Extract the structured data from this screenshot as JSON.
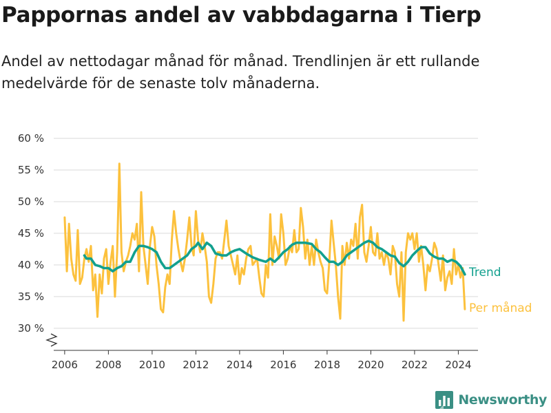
{
  "title": "Pappornas andel av vabbdagarna i Tierp",
  "subtitle": "Andel av nettodagar månad för månad. Trendlinjen är ett rullande medelvärde för de senaste tolv månaderna.",
  "brand": {
    "name": "Newsworthy",
    "icon": "bar-chart-icon",
    "color": "#3a8f84"
  },
  "chart_data": {
    "type": "line",
    "title": "",
    "xlabel": "",
    "ylabel": "",
    "x_ticks": [
      "2006",
      "2008",
      "2010",
      "2012",
      "2014",
      "2016",
      "2018",
      "2020",
      "2022",
      "2024"
    ],
    "y_ticks": [
      "30 %",
      "35 %",
      "40 %",
      "45 %",
      "50 %",
      "55 %",
      "60 %"
    ],
    "xlim": [
      2005.5,
      2024.9
    ],
    "ylim": [
      26.5,
      60
    ],
    "y_axis_break": true,
    "grid": true,
    "series": [
      {
        "name": "Per månad",
        "color": "#fcc13d",
        "points": [
          [
            2006.0,
            47.5
          ],
          [
            2006.1,
            39
          ],
          [
            2006.2,
            46.5
          ],
          [
            2006.3,
            41
          ],
          [
            2006.4,
            38.5
          ],
          [
            2006.5,
            37.5
          ],
          [
            2006.6,
            45.5
          ],
          [
            2006.7,
            37
          ],
          [
            2006.8,
            38
          ],
          [
            2006.9,
            41
          ],
          [
            2007.0,
            42.5
          ],
          [
            2007.1,
            40.5
          ],
          [
            2007.2,
            43
          ],
          [
            2007.3,
            36
          ],
          [
            2007.4,
            38.5
          ],
          [
            2007.5,
            31.8
          ],
          [
            2007.6,
            38.5
          ],
          [
            2007.7,
            35.5
          ],
          [
            2007.8,
            41
          ],
          [
            2007.9,
            42.5
          ],
          [
            2008.0,
            37
          ],
          [
            2008.1,
            40.5
          ],
          [
            2008.2,
            43
          ],
          [
            2008.3,
            35
          ],
          [
            2008.4,
            42
          ],
          [
            2008.5,
            56
          ],
          [
            2008.6,
            42
          ],
          [
            2008.7,
            39
          ],
          [
            2008.8,
            40.5
          ],
          [
            2008.9,
            41.5
          ],
          [
            2009.0,
            43
          ],
          [
            2009.1,
            45
          ],
          [
            2009.2,
            44
          ],
          [
            2009.3,
            46.5
          ],
          [
            2009.4,
            39
          ],
          [
            2009.5,
            51.5
          ],
          [
            2009.6,
            43
          ],
          [
            2009.7,
            40
          ],
          [
            2009.8,
            37
          ],
          [
            2009.9,
            43
          ],
          [
            2010.0,
            46
          ],
          [
            2010.1,
            44.5
          ],
          [
            2010.2,
            40
          ],
          [
            2010.3,
            37
          ],
          [
            2010.4,
            33
          ],
          [
            2010.5,
            32.5
          ],
          [
            2010.6,
            36.5
          ],
          [
            2010.7,
            38.5
          ],
          [
            2010.8,
            37
          ],
          [
            2010.9,
            44
          ],
          [
            2011.0,
            48.5
          ],
          [
            2011.1,
            45
          ],
          [
            2011.2,
            42.5
          ],
          [
            2011.3,
            40.5
          ],
          [
            2011.4,
            39
          ],
          [
            2011.5,
            41
          ],
          [
            2011.6,
            44
          ],
          [
            2011.7,
            47.5
          ],
          [
            2011.8,
            43
          ],
          [
            2011.9,
            41.5
          ],
          [
            2012.0,
            48.5
          ],
          [
            2012.1,
            44
          ],
          [
            2012.2,
            42
          ],
          [
            2012.3,
            45
          ],
          [
            2012.4,
            43
          ],
          [
            2012.5,
            40.5
          ],
          [
            2012.6,
            35
          ],
          [
            2012.7,
            34
          ],
          [
            2012.8,
            37
          ],
          [
            2012.9,
            41
          ],
          [
            2013.0,
            42
          ],
          [
            2013.1,
            42
          ],
          [
            2013.2,
            41
          ],
          [
            2013.3,
            44
          ],
          [
            2013.4,
            47
          ],
          [
            2013.5,
            43
          ],
          [
            2013.6,
            41.5
          ],
          [
            2013.7,
            40
          ],
          [
            2013.8,
            38.5
          ],
          [
            2013.9,
            41.5
          ],
          [
            2014.0,
            37
          ],
          [
            2014.1,
            39.5
          ],
          [
            2014.2,
            38.5
          ],
          [
            2014.3,
            41
          ],
          [
            2014.4,
            42.5
          ],
          [
            2014.5,
            43
          ],
          [
            2014.6,
            40
          ],
          [
            2014.7,
            40.5
          ],
          [
            2014.8,
            41
          ],
          [
            2014.9,
            38
          ],
          [
            2015.0,
            35.5
          ],
          [
            2015.1,
            35
          ],
          [
            2015.2,
            40
          ],
          [
            2015.3,
            38
          ],
          [
            2015.4,
            48
          ],
          [
            2015.5,
            40
          ],
          [
            2015.6,
            44.5
          ],
          [
            2015.7,
            43
          ],
          [
            2015.8,
            41
          ],
          [
            2015.9,
            48
          ],
          [
            2016.0,
            45
          ],
          [
            2016.1,
            40
          ],
          [
            2016.2,
            41
          ],
          [
            2016.3,
            43
          ],
          [
            2016.4,
            42
          ],
          [
            2016.5,
            45.5
          ],
          [
            2016.6,
            42
          ],
          [
            2016.7,
            42.5
          ],
          [
            2016.8,
            49
          ],
          [
            2016.9,
            46
          ],
          [
            2017.0,
            41
          ],
          [
            2017.1,
            44
          ],
          [
            2017.2,
            40
          ],
          [
            2017.3,
            43
          ],
          [
            2017.4,
            40
          ],
          [
            2017.5,
            44
          ],
          [
            2017.6,
            42
          ],
          [
            2017.7,
            40.5
          ],
          [
            2017.8,
            39.5
          ],
          [
            2017.9,
            36
          ],
          [
            2018.0,
            35.5
          ],
          [
            2018.1,
            40.5
          ],
          [
            2018.2,
            47
          ],
          [
            2018.3,
            43.5
          ],
          [
            2018.4,
            40
          ],
          [
            2018.5,
            35
          ],
          [
            2018.6,
            31.5
          ],
          [
            2018.7,
            43
          ],
          [
            2018.8,
            40
          ],
          [
            2018.9,
            43.5
          ],
          [
            2019.0,
            41
          ],
          [
            2019.1,
            44
          ],
          [
            2019.2,
            43
          ],
          [
            2019.3,
            46.5
          ],
          [
            2019.4,
            41
          ],
          [
            2019.5,
            47.5
          ],
          [
            2019.6,
            49.5
          ],
          [
            2019.7,
            42
          ],
          [
            2019.8,
            40.5
          ],
          [
            2019.9,
            43
          ],
          [
            2020.0,
            46
          ],
          [
            2020.1,
            42
          ],
          [
            2020.2,
            41.5
          ],
          [
            2020.3,
            45
          ],
          [
            2020.4,
            41
          ],
          [
            2020.5,
            42
          ],
          [
            2020.6,
            40
          ],
          [
            2020.7,
            42
          ],
          [
            2020.8,
            41
          ],
          [
            2020.9,
            38.5
          ],
          [
            2021.0,
            43
          ],
          [
            2021.1,
            42
          ],
          [
            2021.2,
            37
          ],
          [
            2021.3,
            35
          ],
          [
            2021.4,
            42
          ],
          [
            2021.5,
            31.2
          ],
          [
            2021.6,
            42
          ],
          [
            2021.7,
            45
          ],
          [
            2021.8,
            44
          ],
          [
            2021.9,
            45
          ],
          [
            2022.0,
            42.5
          ],
          [
            2022.1,
            45
          ],
          [
            2022.2,
            40.5
          ],
          [
            2022.3,
            43
          ],
          [
            2022.4,
            40
          ],
          [
            2022.5,
            36
          ],
          [
            2022.6,
            40
          ],
          [
            2022.7,
            39
          ],
          [
            2022.8,
            41
          ],
          [
            2022.9,
            43.5
          ],
          [
            2023.0,
            42.5
          ],
          [
            2023.1,
            40
          ],
          [
            2023.2,
            37.5
          ],
          [
            2023.3,
            41.5
          ],
          [
            2023.4,
            36
          ],
          [
            2023.5,
            38
          ],
          [
            2023.6,
            39
          ],
          [
            2023.7,
            37
          ],
          [
            2023.8,
            42.5
          ],
          [
            2023.9,
            38.5
          ],
          [
            2024.0,
            40
          ],
          [
            2024.1,
            38
          ],
          [
            2024.2,
            39.5
          ],
          [
            2024.3,
            33
          ]
        ]
      },
      {
        "name": "Trend",
        "color": "#12a08e",
        "points": [
          [
            2006.9,
            41.5
          ],
          [
            2007.0,
            41
          ],
          [
            2007.2,
            41
          ],
          [
            2007.4,
            40
          ],
          [
            2007.6,
            39.8
          ],
          [
            2007.8,
            39.5
          ],
          [
            2008.0,
            39.5
          ],
          [
            2008.2,
            39
          ],
          [
            2008.4,
            39.5
          ],
          [
            2008.6,
            39.8
          ],
          [
            2008.8,
            40.5
          ],
          [
            2009.0,
            40.5
          ],
          [
            2009.2,
            42
          ],
          [
            2009.4,
            43
          ],
          [
            2009.6,
            43
          ],
          [
            2009.8,
            42.8
          ],
          [
            2010.0,
            42.5
          ],
          [
            2010.2,
            42
          ],
          [
            2010.4,
            40.5
          ],
          [
            2010.6,
            39.5
          ],
          [
            2010.8,
            39.5
          ],
          [
            2011.0,
            40
          ],
          [
            2011.2,
            40.5
          ],
          [
            2011.4,
            41
          ],
          [
            2011.6,
            41.5
          ],
          [
            2011.8,
            42.5
          ],
          [
            2012.0,
            43
          ],
          [
            2012.1,
            43.5
          ],
          [
            2012.3,
            42.5
          ],
          [
            2012.5,
            43.5
          ],
          [
            2012.7,
            43
          ],
          [
            2012.9,
            41.8
          ],
          [
            2013.2,
            41.5
          ],
          [
            2013.4,
            41.5
          ],
          [
            2013.6,
            42
          ],
          [
            2013.8,
            42.3
          ],
          [
            2014.0,
            42.5
          ],
          [
            2014.3,
            41.8
          ],
          [
            2014.6,
            41.2
          ],
          [
            2014.9,
            40.8
          ],
          [
            2015.2,
            40.5
          ],
          [
            2015.4,
            41
          ],
          [
            2015.6,
            40.5
          ],
          [
            2015.8,
            41.2
          ],
          [
            2016.0,
            42
          ],
          [
            2016.2,
            42.5
          ],
          [
            2016.4,
            43.2
          ],
          [
            2016.6,
            43.5
          ],
          [
            2016.8,
            43.5
          ],
          [
            2017.0,
            43.5
          ],
          [
            2017.3,
            43.3
          ],
          [
            2017.5,
            42.5
          ],
          [
            2017.7,
            42
          ],
          [
            2017.9,
            41.2
          ],
          [
            2018.1,
            40.5
          ],
          [
            2018.3,
            40.5
          ],
          [
            2018.5,
            40
          ],
          [
            2018.7,
            40.5
          ],
          [
            2018.9,
            41.5
          ],
          [
            2019.1,
            42
          ],
          [
            2019.3,
            42.5
          ],
          [
            2019.5,
            43
          ],
          [
            2019.7,
            43.5
          ],
          [
            2019.9,
            43.8
          ],
          [
            2020.1,
            43.5
          ],
          [
            2020.3,
            42.8
          ],
          [
            2020.5,
            42.5
          ],
          [
            2020.7,
            42
          ],
          [
            2020.9,
            41.5
          ],
          [
            2021.1,
            41.3
          ],
          [
            2021.3,
            40.3
          ],
          [
            2021.5,
            39.8
          ],
          [
            2021.7,
            40.5
          ],
          [
            2021.9,
            41.5
          ],
          [
            2022.1,
            42.2
          ],
          [
            2022.3,
            42.8
          ],
          [
            2022.5,
            42.8
          ],
          [
            2022.7,
            41.8
          ],
          [
            2022.9,
            41.3
          ],
          [
            2023.1,
            41
          ],
          [
            2023.3,
            41
          ],
          [
            2023.5,
            40.5
          ],
          [
            2023.7,
            40.8
          ],
          [
            2023.9,
            40.5
          ],
          [
            2024.1,
            39.8
          ],
          [
            2024.3,
            38.5
          ]
        ]
      }
    ],
    "series_labels": [
      "Trend",
      "Per månad"
    ]
  }
}
